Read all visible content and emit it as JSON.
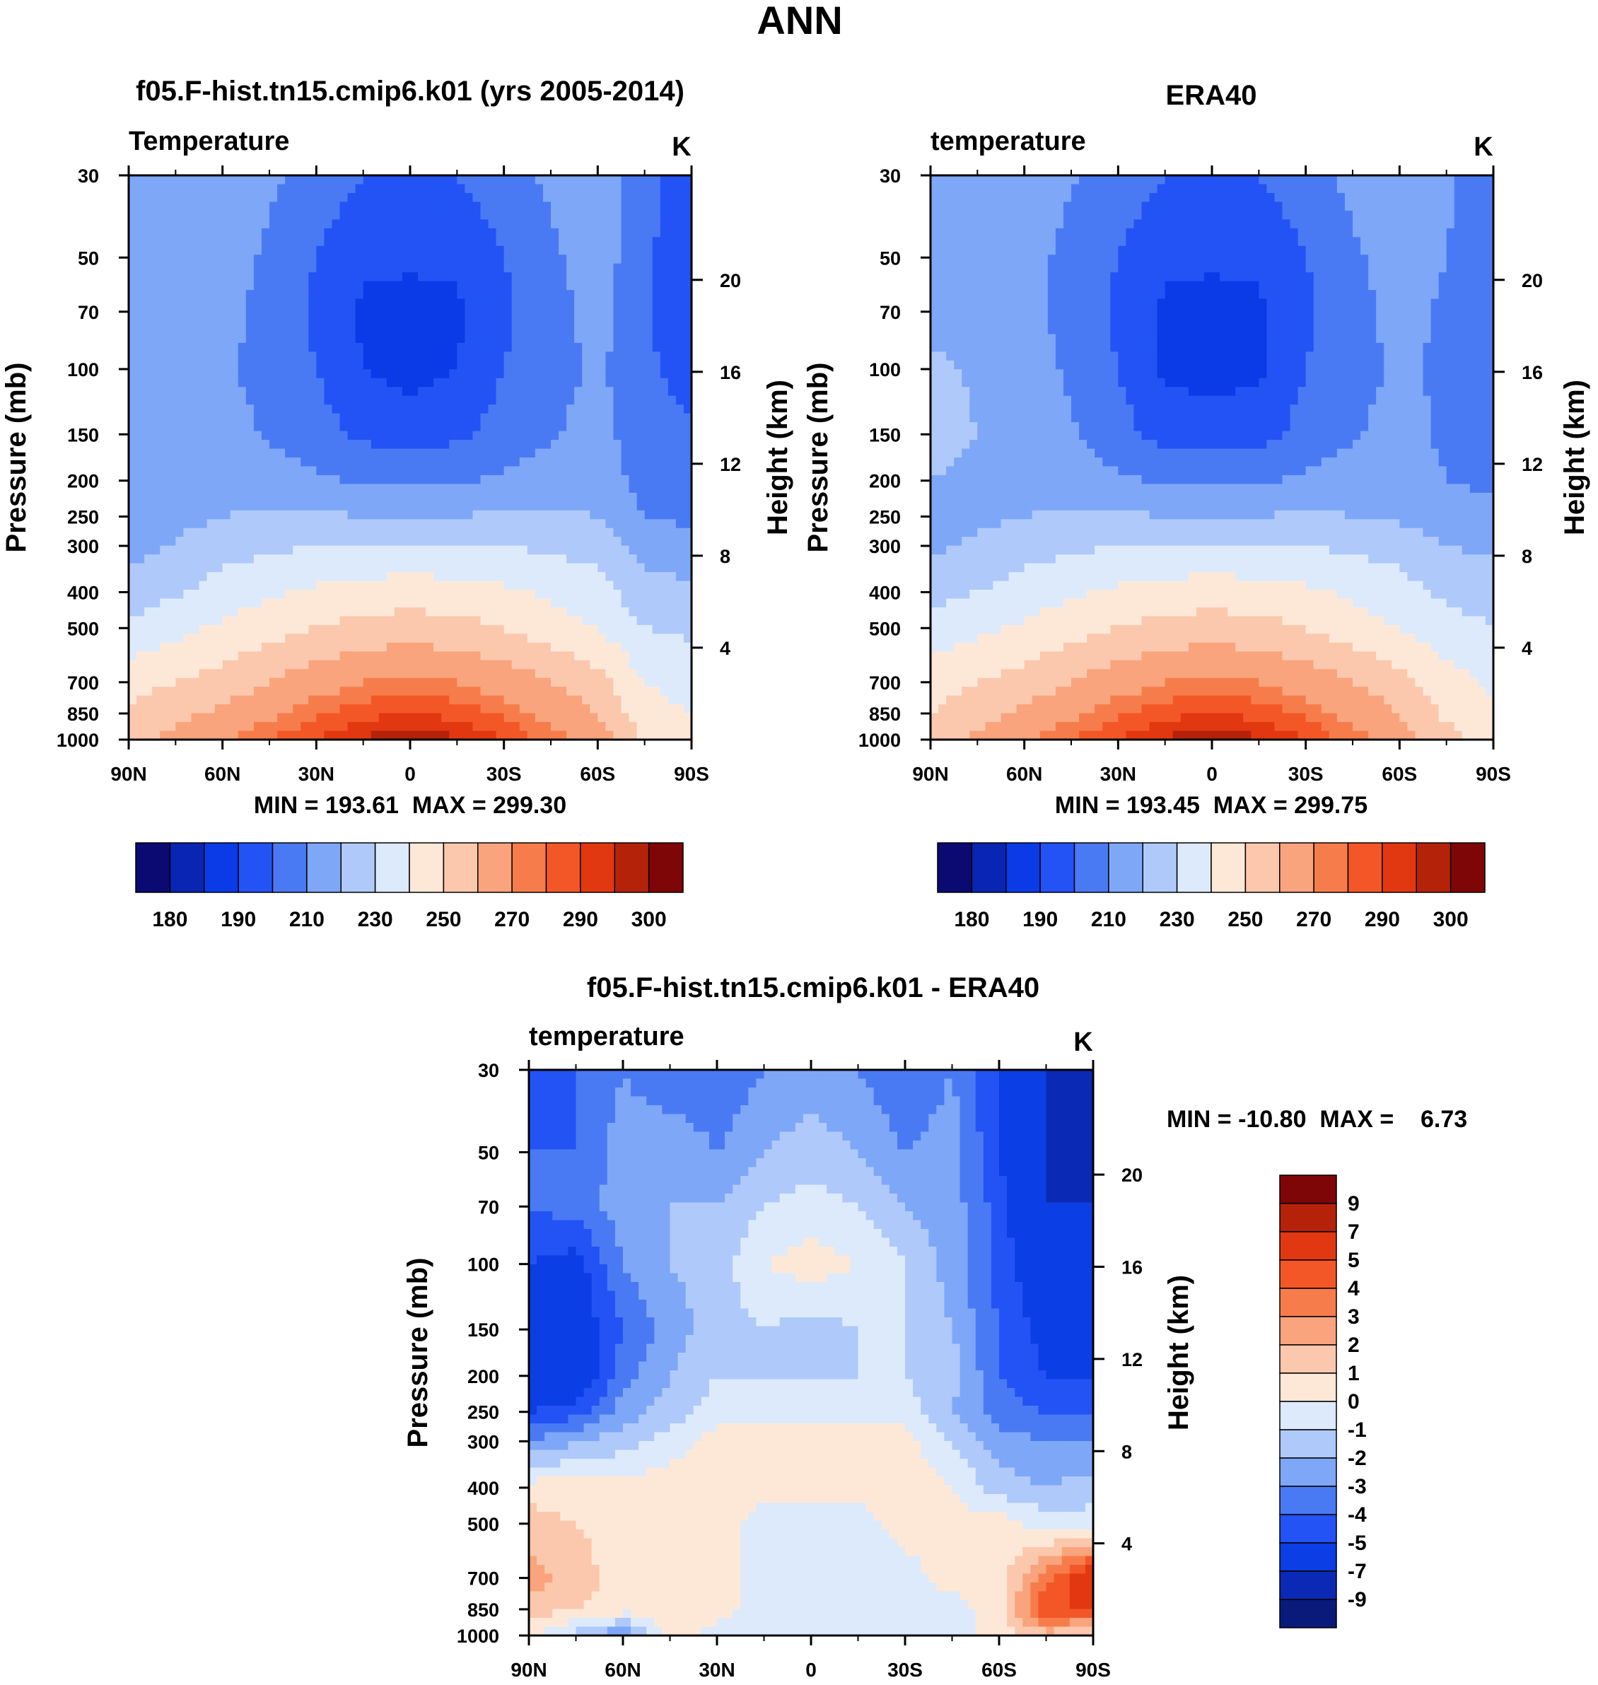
{
  "figure": {
    "title": "ANN"
  },
  "colors": {
    "model_levels": [
      "#0a0a72",
      "#0825b4",
      "#0a3be6",
      "#2353f5",
      "#4a7af3",
      "#7ea7f8",
      "#afc9fa",
      "#dceafb",
      "#fde8d8",
      "#fbc8ad",
      "#f9a47d",
      "#f67d4b",
      "#f45727",
      "#e13812",
      "#b5220a",
      "#7f0606"
    ],
    "diff_levels": [
      "#0a1a7a",
      "#0a2ab5",
      "#0b3ee4",
      "#2353f5",
      "#4a7af3",
      "#7ea7f8",
      "#afc9fa",
      "#dceafb",
      "#fde8d8",
      "#fbc8ad",
      "#f9a47d",
      "#f67d4b",
      "#f45727",
      "#e13812",
      "#b5220a",
      "#7f0606"
    ]
  },
  "chart_data": [
    {
      "type": "heatmap",
      "panel_title": "f05.F-hist.tn15.cmip6.k01 (yrs 2005-2014)",
      "variable_label": "Temperature",
      "units": "K",
      "ylabel": "Pressure (mb)",
      "ylabel_right": "Height (km)",
      "x_ticks": [
        "90N",
        "60N",
        "30N",
        "0",
        "30S",
        "60S",
        "90S"
      ],
      "y_ticks": [
        "30",
        "50",
        "70",
        "100",
        "150",
        "200",
        "250",
        "300",
        "400",
        "500",
        "700",
        "850",
        "1000"
      ],
      "height_ticks": [
        "20",
        "16",
        "12",
        "8",
        "4"
      ],
      "min_max_text": "MIN = 193.61  MAX = 299.30",
      "colorbar_labels": [
        "180",
        "190",
        "210",
        "230",
        "250",
        "270",
        "290",
        "300"
      ],
      "values": {
        "lat": [
          90,
          60,
          30,
          15,
          0,
          -15,
          -30,
          -60,
          -75,
          -90
        ],
        "pressure": [
          30,
          50,
          70,
          100,
          150,
          200,
          250,
          300,
          400,
          500,
          700,
          850,
          1000
        ],
        "temperature": [
          [
            228,
            228,
            216,
            210,
            210,
            210,
            216,
            228,
            214,
            204
          ],
          [
            228,
            226,
            210,
            202,
            202,
            202,
            210,
            226,
            212,
            202
          ],
          [
            226,
            224,
            208,
            198,
            196,
            198,
            208,
            224,
            212,
            200
          ],
          [
            224,
            222,
            210,
            200,
            196,
            200,
            210,
            222,
            212,
            206
          ],
          [
            224,
            224,
            214,
            208,
            206,
            208,
            214,
            224,
            214,
            212
          ],
          [
            224,
            226,
            222,
            218,
            218,
            218,
            222,
            226,
            216,
            214
          ],
          [
            224,
            230,
            232,
            230,
            230,
            230,
            232,
            230,
            220,
            218
          ],
          [
            226,
            236,
            240,
            240,
            240,
            240,
            240,
            236,
            226,
            224
          ],
          [
            234,
            244,
            252,
            254,
            256,
            254,
            252,
            244,
            234,
            232
          ],
          [
            242,
            252,
            260,
            264,
            264,
            264,
            260,
            250,
            240,
            238
          ],
          [
            256,
            264,
            276,
            280,
            282,
            280,
            276,
            264,
            250,
            246
          ],
          [
            262,
            272,
            284,
            288,
            290,
            288,
            284,
            270,
            254,
            250
          ],
          [
            266,
            280,
            290,
            296,
            298,
            296,
            290,
            276,
            258,
            254
          ]
        ]
      }
    },
    {
      "type": "heatmap",
      "panel_title": "ERA40",
      "variable_label": "temperature",
      "units": "K",
      "ylabel": "Pressure (mb)",
      "ylabel_right": "Height (km)",
      "x_ticks": [
        "90N",
        "60N",
        "30N",
        "0",
        "30S",
        "60S",
        "90S"
      ],
      "y_ticks": [
        "30",
        "50",
        "70",
        "100",
        "150",
        "200",
        "250",
        "300",
        "400",
        "500",
        "700",
        "850",
        "1000"
      ],
      "height_ticks": [
        "20",
        "16",
        "12",
        "8",
        "4"
      ],
      "min_max_text": "MIN = 193.45  MAX = 299.75",
      "colorbar_labels": [
        "180",
        "190",
        "210",
        "230",
        "250",
        "270",
        "290",
        "300"
      ],
      "values": {
        "lat": [
          90,
          60,
          30,
          15,
          0,
          -15,
          -30,
          -60,
          -75,
          -90
        ],
        "pressure": [
          30,
          50,
          70,
          100,
          150,
          200,
          250,
          300,
          400,
          500,
          700,
          850,
          1000
        ],
        "temperature": [
          [
            226,
            226,
            216,
            210,
            210,
            210,
            216,
            230,
            222,
            210
          ],
          [
            226,
            224,
            210,
            202,
            202,
            202,
            210,
            226,
            220,
            212
          ],
          [
            226,
            224,
            208,
            198,
            196,
            198,
            208,
            224,
            218,
            212
          ],
          [
            232,
            226,
            210,
            198,
            196,
            198,
            210,
            222,
            218,
            214
          ],
          [
            232,
            228,
            214,
            206,
            206,
            206,
            214,
            224,
            218,
            216
          ],
          [
            230,
            228,
            222,
            218,
            218,
            218,
            222,
            226,
            220,
            218
          ],
          [
            226,
            230,
            232,
            230,
            230,
            230,
            232,
            228,
            224,
            222
          ],
          [
            228,
            236,
            240,
            240,
            240,
            240,
            240,
            236,
            230,
            228
          ],
          [
            236,
            244,
            252,
            254,
            256,
            254,
            252,
            244,
            238,
            236
          ],
          [
            244,
            252,
            260,
            264,
            264,
            264,
            260,
            250,
            244,
            240
          ],
          [
            256,
            264,
            276,
            280,
            282,
            280,
            276,
            264,
            254,
            248
          ],
          [
            260,
            272,
            284,
            288,
            290,
            288,
            284,
            270,
            258,
            252
          ],
          [
            264,
            280,
            290,
            296,
            298,
            296,
            290,
            276,
            264,
            256
          ]
        ]
      }
    },
    {
      "type": "heatmap",
      "panel_title": "f05.F-hist.tn15.cmip6.k01 - ERA40",
      "variable_label": "temperature",
      "units": "K",
      "ylabel": "Pressure (mb)",
      "ylabel_right": "Height (km)",
      "x_ticks": [
        "90N",
        "60N",
        "30N",
        "0",
        "30S",
        "60S",
        "90S"
      ],
      "y_ticks": [
        "30",
        "50",
        "70",
        "100",
        "150",
        "200",
        "250",
        "300",
        "400",
        "500",
        "700",
        "850",
        "1000"
      ],
      "height_ticks": [
        "20",
        "16",
        "12",
        "8",
        "4"
      ],
      "min_max_text": "MIN = -10.80  MAX =    6.73",
      "colorbar_labels": [
        "9",
        "7",
        "5",
        "4",
        "3",
        "2",
        "1",
        "0",
        "-1",
        "-2",
        "-3",
        "-4",
        "-5",
        "-7",
        "-9"
      ],
      "values": {
        "lat": [
          90,
          75,
          60,
          45,
          30,
          15,
          0,
          -15,
          -30,
          -45,
          -60,
          -75,
          -90
        ],
        "pressure": [
          30,
          50,
          70,
          100,
          150,
          200,
          250,
          300,
          400,
          500,
          700,
          850,
          1000
        ],
        "temperature_difference": [
          [
            -4.5,
            -4,
            -3,
            -4,
            -4,
            -3,
            -2.5,
            -3,
            -4,
            -3,
            -5,
            -7,
            -9
          ],
          [
            -4,
            -4,
            -2.5,
            -2,
            -3,
            -2,
            -1.5,
            -2,
            -3,
            -2.5,
            -5,
            -7,
            -7.5
          ],
          [
            -4,
            -3.5,
            -2.5,
            -2,
            -2,
            -1,
            -0.5,
            -1,
            -2,
            -2.5,
            -4.5,
            -7,
            -7
          ],
          [
            -5,
            -5.5,
            -3,
            -2,
            -1.5,
            0,
            0.5,
            0,
            -1,
            -2.5,
            -4.5,
            -6,
            -7
          ],
          [
            -6,
            -6,
            -4,
            -2.5,
            -1.5,
            -1,
            -1.5,
            -1,
            -1,
            -2,
            -4,
            -5.5,
            -6
          ],
          [
            -6.5,
            -6.5,
            -3.5,
            -2,
            -1,
            -1,
            -1,
            -1,
            -1,
            -1.5,
            -4,
            -5,
            -5
          ],
          [
            -5,
            -4.5,
            -2.5,
            -1.5,
            -0.5,
            -0.5,
            -0.5,
            -0.5,
            -0.5,
            -2,
            -3.5,
            -4,
            -4
          ],
          [
            -3,
            -2,
            -1.5,
            -0.5,
            0.5,
            0.5,
            0.5,
            0.5,
            0.5,
            -1,
            -2.5,
            -3,
            -3
          ],
          [
            0.5,
            0.5,
            0.5,
            0.5,
            0.5,
            0.5,
            0.5,
            0.5,
            0.5,
            0,
            -1.5,
            -2,
            -1.5
          ],
          [
            1.5,
            1,
            0.5,
            0.5,
            0.5,
            -0.5,
            -0.5,
            -0.5,
            0.5,
            0.5,
            0.5,
            -0.5,
            -0.5
          ],
          [
            2.5,
            1.5,
            0.5,
            0.5,
            0.5,
            -0.5,
            -0.5,
            -0.5,
            -0.5,
            0.5,
            0.5,
            3.5,
            6.5
          ],
          [
            1.5,
            1,
            0.5,
            0.5,
            0.5,
            -0.5,
            -0.5,
            -0.5,
            -0.5,
            -0.5,
            0.5,
            5,
            5
          ],
          [
            0.5,
            -1.5,
            -3,
            0.5,
            -0.5,
            -0.5,
            -0.5,
            -0.5,
            -0.5,
            -0.5,
            0.5,
            1.5,
            0.5
          ]
        ]
      }
    }
  ]
}
